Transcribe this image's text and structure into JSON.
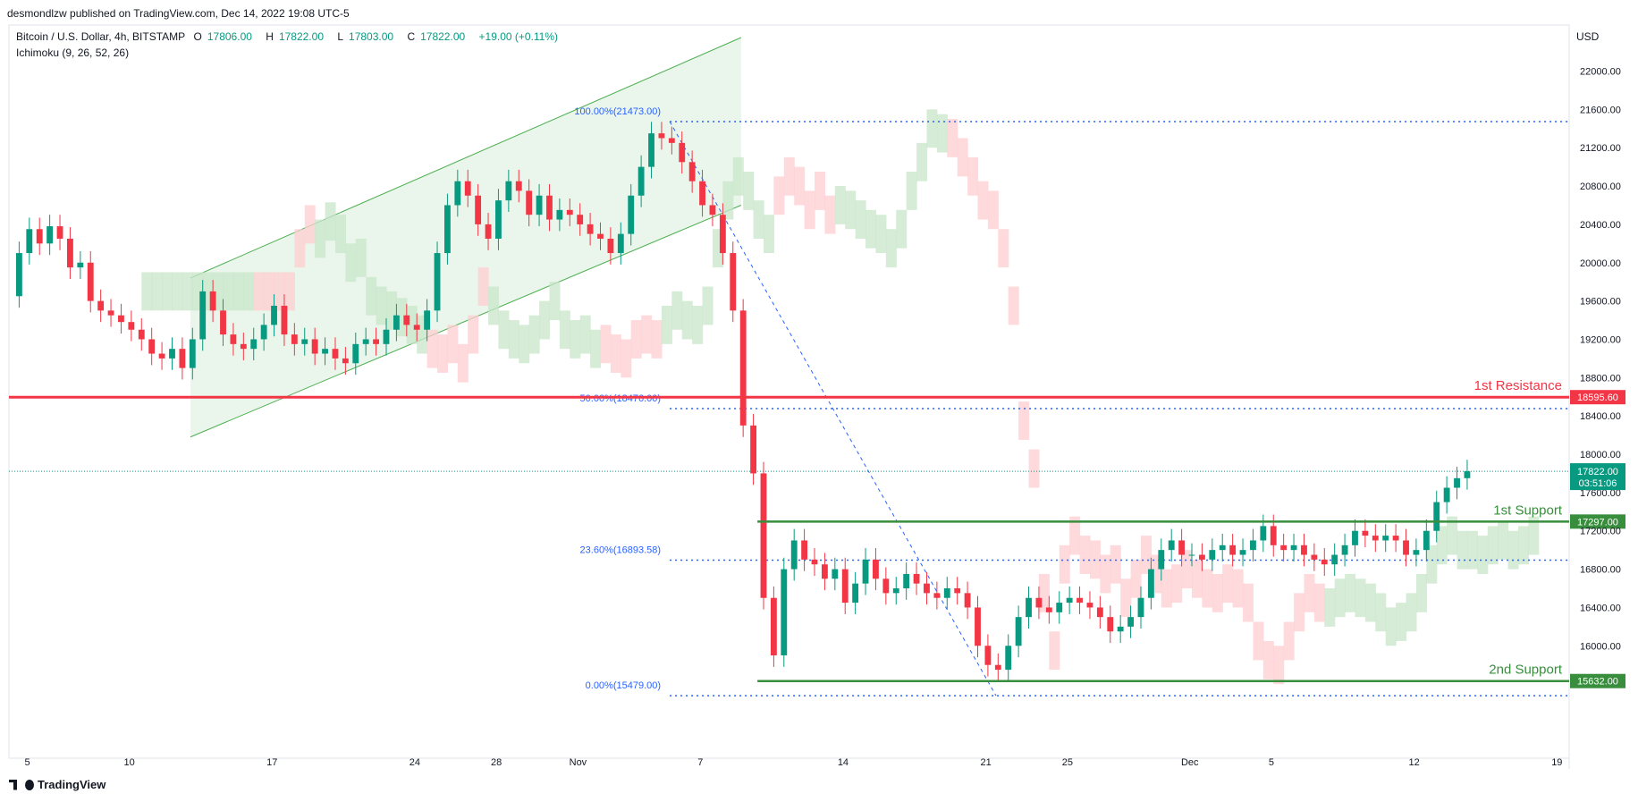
{
  "header": {
    "published": "desmondlzw published on TradingView.com, Dec 14, 2022 19:08 UTC-5"
  },
  "legend": {
    "symbol": "Bitcoin / U.S. Dollar, 4h, BITSTAMP",
    "open_label": "O",
    "open": "17806.00",
    "high_label": "H",
    "high": "17822.00",
    "low_label": "L",
    "low": "17803.00",
    "close_label": "C",
    "close": "17822.00",
    "change": "+19.00 (+0.11%)",
    "indicator": "Ichimoku (9, 26, 52, 26)"
  },
  "currency": "USD",
  "footer": {
    "brand": "TradingView"
  },
  "colors": {
    "up": "#089981",
    "down": "#f23645",
    "resistance": "#f23645",
    "support": "#388e3c",
    "fib": "#2962ff",
    "cloud_green": "#c8e6c9",
    "cloud_red": "#ffcdd2",
    "channel_fill": "#e8f5e9",
    "channel_line": "#4caf50"
  },
  "chart_data": {
    "type": "candlestick",
    "ylim": [
      15200,
      22500
    ],
    "y_ticks": [
      "22000.00",
      "21600.00",
      "21200.00",
      "20800.00",
      "20400.00",
      "20000.00",
      "19600.00",
      "19200.00",
      "18800.00",
      "18400.00",
      "18000.00",
      "17600.00",
      "17200.00",
      "16800.00",
      "16400.00",
      "16000.00"
    ],
    "y_tick_values": [
      22000,
      21600,
      21200,
      20800,
      20400,
      20000,
      19600,
      19200,
      18800,
      18400,
      18000,
      17600,
      17200,
      16800,
      16400,
      16000
    ],
    "x_ticks": [
      {
        "label": "5",
        "day": 5
      },
      {
        "label": "10",
        "day": 10
      },
      {
        "label": "17",
        "day": 17
      },
      {
        "label": "24",
        "day": 24
      },
      {
        "label": "28",
        "day": 28
      },
      {
        "label": "Nov",
        "day": 32
      },
      {
        "label": "7",
        "day": 38
      },
      {
        "label": "14",
        "day": 45
      },
      {
        "label": "21",
        "day": 52
      },
      {
        "label": "25",
        "day": 56
      },
      {
        "label": "Dec",
        "day": 62
      },
      {
        "label": "5",
        "day": 66
      },
      {
        "label": "12",
        "day": 73
      },
      {
        "label": "19",
        "day": 80
      }
    ],
    "x_domain_days": [
      4.1,
      80.6
    ],
    "horizontal_levels": [
      {
        "name": "1st Resistance",
        "value": 18595.6,
        "label": "18595.60",
        "kind": "resistance"
      },
      {
        "name": "1st Support",
        "value": 17297.0,
        "label": "17297.00",
        "kind": "support"
      },
      {
        "name": "2nd Support",
        "value": 15632.0,
        "label": "15632.00",
        "kind": "support"
      }
    ],
    "current_price": {
      "value": 17822.0,
      "label": "17822.00",
      "countdown": "03:51:06"
    },
    "fibonacci": [
      {
        "ratio": "100.00%",
        "price": 21473.0,
        "label": "100.00%(21473.00)"
      },
      {
        "ratio": "50.00%",
        "price": 18476.0,
        "label": "50.00%(18476.00)"
      },
      {
        "ratio": "23.60%",
        "price": 16893.58,
        "label": "23.60%(16893.58)"
      },
      {
        "ratio": "0.00%",
        "price": 15479.0,
        "label": "0.00%(15479.00)"
      }
    ],
    "fib_x_range_days": [
      36.5,
      80.6
    ],
    "channel": {
      "upper": [
        [
          13,
          19840
        ],
        [
          40,
          22350
        ]
      ],
      "lower": [
        [
          13,
          18180
        ],
        [
          40,
          20600
        ]
      ]
    },
    "fib_trend_line": [
      [
        36.5,
        21473
      ],
      [
        52.5,
        15479
      ]
    ],
    "candles_close": [
      [
        4.1,
        19650
      ],
      [
        4.6,
        20100
      ],
      [
        5.1,
        20350
      ],
      [
        5.6,
        20200
      ],
      [
        6.1,
        20380
      ],
      [
        6.6,
        20250
      ],
      [
        7.1,
        19950
      ],
      [
        7.6,
        20000
      ],
      [
        8.1,
        19600
      ],
      [
        8.6,
        19500
      ],
      [
        9.1,
        19450
      ],
      [
        9.6,
        19380
      ],
      [
        10.1,
        19300
      ],
      [
        10.6,
        19200
      ],
      [
        11.1,
        19050
      ],
      [
        11.6,
        19000
      ],
      [
        12.1,
        19100
      ],
      [
        12.6,
        18900
      ],
      [
        13.1,
        19200
      ],
      [
        13.6,
        19700
      ],
      [
        14.1,
        19500
      ],
      [
        14.6,
        19250
      ],
      [
        15.1,
        19150
      ],
      [
        15.6,
        19100
      ],
      [
        16.1,
        19200
      ],
      [
        16.6,
        19350
      ],
      [
        17.1,
        19550
      ],
      [
        17.6,
        19250
      ],
      [
        18.1,
        19150
      ],
      [
        18.6,
        19200
      ],
      [
        19.1,
        19050
      ],
      [
        19.6,
        19100
      ],
      [
        20.1,
        19000
      ],
      [
        20.6,
        18950
      ],
      [
        21.1,
        19150
      ],
      [
        21.6,
        19200
      ],
      [
        22.1,
        19150
      ],
      [
        22.6,
        19300
      ],
      [
        23.1,
        19450
      ],
      [
        23.6,
        19350
      ],
      [
        24.1,
        19300
      ],
      [
        24.6,
        19500
      ],
      [
        25.1,
        20100
      ],
      [
        25.6,
        20600
      ],
      [
        26.1,
        20850
      ],
      [
        26.6,
        20700
      ],
      [
        27.1,
        20400
      ],
      [
        27.6,
        20250
      ],
      [
        28.1,
        20650
      ],
      [
        28.6,
        20850
      ],
      [
        29.1,
        20750
      ],
      [
        29.6,
        20500
      ],
      [
        30.1,
        20700
      ],
      [
        30.6,
        20450
      ],
      [
        31.1,
        20550
      ],
      [
        31.6,
        20500
      ],
      [
        32.1,
        20400
      ],
      [
        32.6,
        20300
      ],
      [
        33.1,
        20250
      ],
      [
        33.6,
        20100
      ],
      [
        34.1,
        20300
      ],
      [
        34.6,
        20700
      ],
      [
        35.1,
        21000
      ],
      [
        35.6,
        21350
      ],
      [
        36.1,
        21300
      ],
      [
        36.6,
        21250
      ],
      [
        37.1,
        21050
      ],
      [
        37.6,
        20850
      ],
      [
        38.1,
        20600
      ],
      [
        38.6,
        20500
      ],
      [
        39.1,
        20100
      ],
      [
        39.6,
        19500
      ],
      [
        40.1,
        18300
      ],
      [
        40.6,
        17800
      ],
      [
        41.1,
        16500
      ],
      [
        41.6,
        15900
      ],
      [
        42.1,
        16800
      ],
      [
        42.6,
        17100
      ],
      [
        43.1,
        16900
      ],
      [
        43.6,
        16850
      ],
      [
        44.1,
        16700
      ],
      [
        44.6,
        16800
      ],
      [
        45.1,
        16450
      ],
      [
        45.6,
        16650
      ],
      [
        46.1,
        16900
      ],
      [
        46.6,
        16700
      ],
      [
        47.1,
        16550
      ],
      [
        47.6,
        16600
      ],
      [
        48.1,
        16750
      ],
      [
        48.6,
        16650
      ],
      [
        49.1,
        16550
      ],
      [
        49.6,
        16500
      ],
      [
        50.1,
        16600
      ],
      [
        50.6,
        16550
      ],
      [
        51.1,
        16400
      ],
      [
        51.6,
        16000
      ],
      [
        52.1,
        15800
      ],
      [
        52.6,
        15750
      ],
      [
        53.1,
        16000
      ],
      [
        53.6,
        16300
      ],
      [
        54.1,
        16500
      ],
      [
        54.6,
        16400
      ],
      [
        55.1,
        16350
      ],
      [
        55.6,
        16450
      ],
      [
        56.1,
        16500
      ],
      [
        56.6,
        16450
      ],
      [
        57.1,
        16400
      ],
      [
        57.6,
        16300
      ],
      [
        58.1,
        16150
      ],
      [
        58.6,
        16200
      ],
      [
        59.1,
        16300
      ],
      [
        59.6,
        16500
      ],
      [
        60.1,
        16800
      ],
      [
        60.6,
        17000
      ],
      [
        61.1,
        17100
      ],
      [
        61.6,
        16950
      ],
      [
        62.1,
        16950
      ],
      [
        62.6,
        16900
      ],
      [
        63.1,
        17000
      ],
      [
        63.6,
        17050
      ],
      [
        64.1,
        16950
      ],
      [
        64.6,
        17000
      ],
      [
        65.1,
        17100
      ],
      [
        65.6,
        17250
      ],
      [
        66.1,
        17050
      ],
      [
        66.6,
        17000
      ],
      [
        67.1,
        17050
      ],
      [
        67.6,
        16950
      ],
      [
        68.1,
        16900
      ],
      [
        68.6,
        16850
      ],
      [
        69.1,
        16950
      ],
      [
        69.6,
        17050
      ],
      [
        70.1,
        17200
      ],
      [
        70.6,
        17150
      ],
      [
        71.1,
        17100
      ],
      [
        71.6,
        17150
      ],
      [
        72.1,
        17100
      ],
      [
        72.6,
        16950
      ],
      [
        73.1,
        17000
      ],
      [
        73.6,
        17200
      ],
      [
        74.1,
        17500
      ],
      [
        74.6,
        17650
      ],
      [
        75.1,
        17750
      ],
      [
        75.6,
        17822
      ]
    ]
  }
}
